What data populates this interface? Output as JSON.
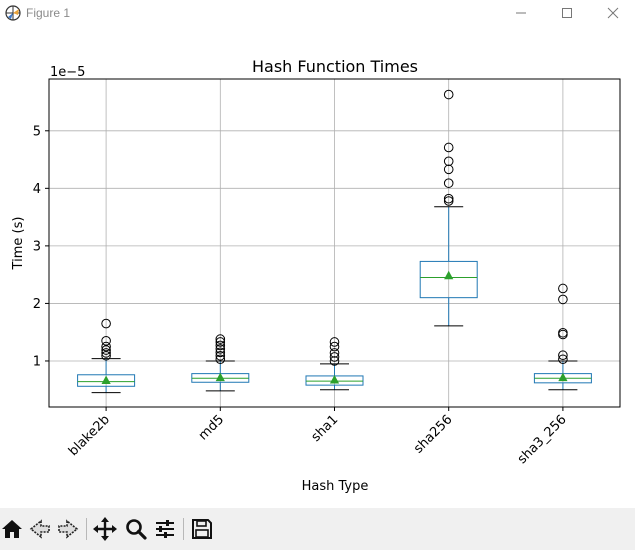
{
  "window": {
    "title": "Figure 1",
    "icons": [
      "app-icon",
      "minimize-icon",
      "maximize-icon",
      "close-icon"
    ]
  },
  "toolbar": {
    "tools": [
      "home-icon",
      "back-arrow-icon",
      "forward-arrow-icon",
      "pan-icon",
      "zoom-icon",
      "configure-subplots-icon",
      "save-icon"
    ]
  },
  "colors": {
    "box": "#1f77b4",
    "median": "#2ca02c",
    "mean_marker": "#2ca02c",
    "grid": "#b0b0b0",
    "outlier": "#000000"
  },
  "chart_data": {
    "type": "box",
    "title": "Hash Function Times",
    "xlabel": "Hash Type",
    "ylabel": "Time (s)",
    "y_offset_label": "1e−5",
    "y_scale": 1e-05,
    "ylim": [
      0.2,
      5.9
    ],
    "yticks": [
      1,
      2,
      3,
      4,
      5
    ],
    "grid": true,
    "categories": [
      "blake2b",
      "md5",
      "sha1",
      "sha256",
      "sha3_256"
    ],
    "boxes": [
      {
        "whisker_low": 0.45,
        "q1": 0.56,
        "median": 0.64,
        "q3": 0.76,
        "whisker_high": 1.04,
        "mean": 0.66,
        "outliers": [
          1.09,
          1.14,
          1.19,
          1.25,
          1.35,
          1.65
        ]
      },
      {
        "whisker_low": 0.48,
        "q1": 0.63,
        "median": 0.7,
        "q3": 0.78,
        "whisker_high": 1.0,
        "mean": 0.71,
        "outliers": [
          1.03,
          1.09,
          1.15,
          1.21,
          1.27,
          1.33,
          1.38
        ]
      },
      {
        "whisker_low": 0.5,
        "q1": 0.58,
        "median": 0.65,
        "q3": 0.74,
        "whisker_high": 0.95,
        "mean": 0.67,
        "outliers": [
          1.0,
          1.07,
          1.14,
          1.25,
          1.33
        ]
      },
      {
        "whisker_low": 1.61,
        "q1": 2.1,
        "median": 2.45,
        "q3": 2.73,
        "whisker_high": 3.68,
        "mean": 2.48,
        "outliers": [
          3.78,
          3.82,
          4.09,
          4.33,
          4.47,
          4.71,
          5.63
        ]
      },
      {
        "whisker_low": 0.5,
        "q1": 0.62,
        "median": 0.7,
        "q3": 0.78,
        "whisker_high": 1.0,
        "mean": 0.71,
        "outliers": [
          1.03,
          1.1,
          1.46,
          1.49,
          2.07,
          2.26
        ]
      }
    ]
  }
}
